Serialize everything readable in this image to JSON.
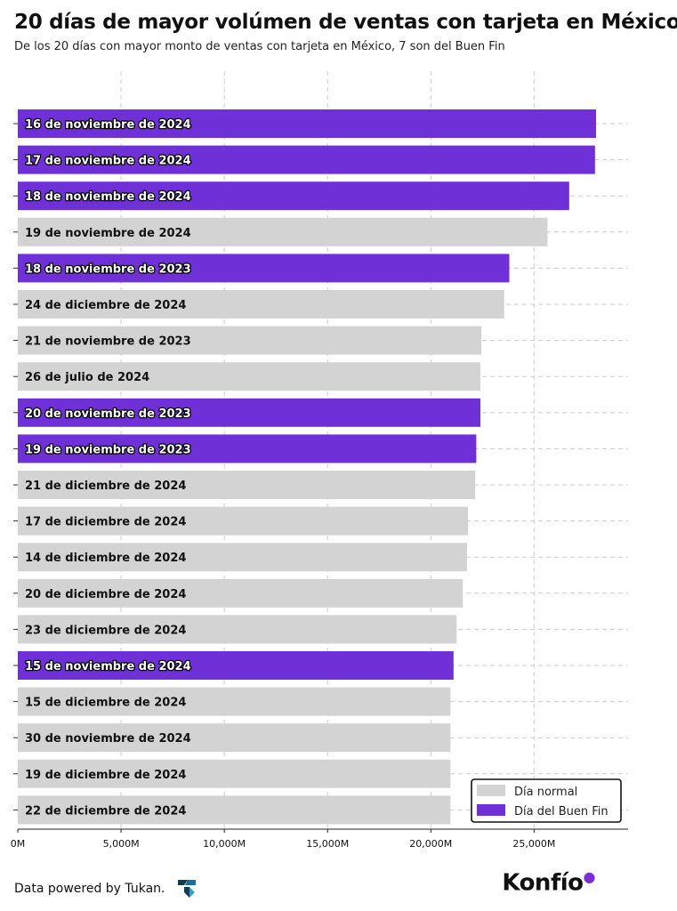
{
  "header": {
    "title": "20 días de mayor volúmen de ventas con tarjeta en México",
    "subtitle": "De los 20 días con mayor monto de ventas con tarjeta en México, 7 son del Buen Fin"
  },
  "colors": {
    "normal": "#d3d3d3",
    "buen_fin": "#7030d8",
    "grid": "#cccccc"
  },
  "chart_data": {
    "type": "bar",
    "orientation": "horizontal",
    "title": "20 días de mayor volúmen de ventas con tarjeta en México",
    "xlabel": "",
    "ylabel": "",
    "xlim": [
      0,
      29500
    ],
    "xticks": [
      0,
      5000,
      10000,
      15000,
      20000,
      25000
    ],
    "xtick_labels": [
      "0M",
      "5,000M",
      "10,000M",
      "15,000M",
      "20,000M",
      "25,000M"
    ],
    "categories": [
      "16 de noviembre de 2024",
      "17 de noviembre de 2024",
      "18 de noviembre de 2024",
      "19 de noviembre de 2024",
      "18 de noviembre de 2023",
      "24 de diciembre de 2024",
      "21 de noviembre de 2023",
      "26 de julio de 2024",
      "20 de noviembre de 2023",
      "19 de noviembre de 2023",
      "21 de diciembre de 2024",
      "17 de diciembre de 2024",
      "14 de diciembre de 2024",
      "20 de diciembre de 2024",
      "23 de diciembre de 2024",
      "15 de noviembre de 2024",
      "15 de diciembre de 2024",
      "30 de noviembre de 2024",
      "19 de diciembre de 2024",
      "22 de diciembre de 2024"
    ],
    "values": [
      28000,
      27950,
      26700,
      25650,
      23800,
      23550,
      22450,
      22400,
      22400,
      22200,
      22150,
      21800,
      21750,
      21550,
      21250,
      21100,
      20950,
      20950,
      20950,
      20950
    ],
    "buen_fin": [
      true,
      true,
      true,
      false,
      true,
      false,
      false,
      false,
      true,
      true,
      false,
      false,
      false,
      false,
      false,
      true,
      false,
      false,
      false,
      false
    ],
    "legend": {
      "position": "bottom-right",
      "entries": [
        "Día normal",
        "Día del Buen Fin"
      ]
    }
  },
  "footer": {
    "credit": "Data powered by Tukan.",
    "brand": "Konfío"
  }
}
